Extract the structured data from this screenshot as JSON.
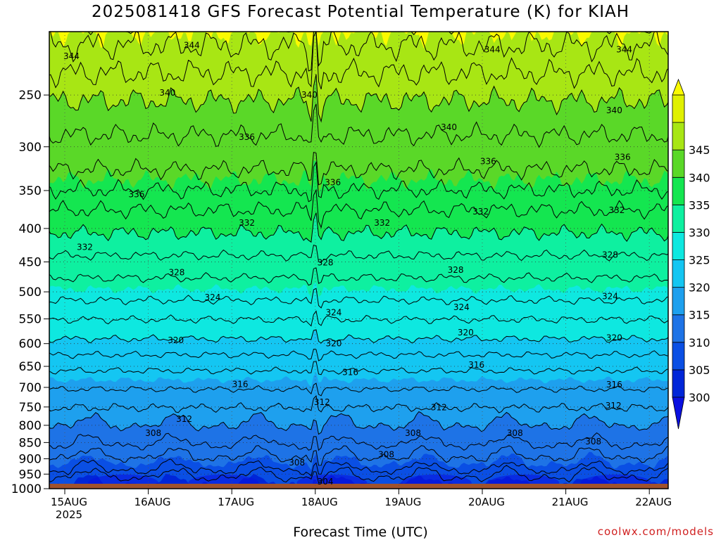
{
  "title": "2025081418 GFS Forecast Potential Temperature (K) for KIAH",
  "xlabel": "Forecast Time (UTC)",
  "credit": "coolwx.com/models",
  "chart_data": {
    "type": "contour",
    "variable": "Potential Temperature (K)",
    "y_axis": {
      "ticks": [
        250,
        300,
        350,
        400,
        450,
        500,
        550,
        600,
        650,
        700,
        750,
        800,
        850,
        900,
        950,
        1000
      ],
      "labels": [
        "250",
        "300",
        "350",
        "400",
        "450",
        "500",
        "550",
        "600",
        "650",
        "700",
        "750",
        "800",
        "850",
        "900",
        "950",
        "1000"
      ],
      "range": [
        200,
        1000
      ],
      "scale": "log",
      "inverted": true
    },
    "x_axis": {
      "labels": [
        "15AUG",
        "16AUG",
        "17AUG",
        "18AUG",
        "19AUG",
        "20AUG",
        "21AUG",
        "22AUG"
      ],
      "sublabel": "2025",
      "range_days": [
        0,
        7.4
      ]
    },
    "colorbar": {
      "levels": [
        300,
        305,
        310,
        315,
        320,
        325,
        330,
        335,
        340,
        345
      ],
      "labels": [
        "300",
        "305",
        "310",
        "315",
        "320",
        "325",
        "330",
        "335",
        "340",
        "345"
      ],
      "colors": [
        "#0026d8",
        "#0a4fe4",
        "#1e73e6",
        "#1ea0ee",
        "#14c6f2",
        "#0ee8e0",
        "#0ef0a0",
        "#14e650",
        "#5ad828",
        "#a8e614",
        "#e0f000"
      ],
      "under_color": "#0a10e0",
      "over_color": "#fafa00"
    },
    "isentropes": [
      {
        "theta": 304,
        "p": 940
      },
      {
        "theta": 308,
        "p": 860
      },
      {
        "theta": 312,
        "p": 752
      },
      {
        "theta": 316,
        "p": 660
      },
      {
        "theta": 320,
        "p": 590
      },
      {
        "theta": 324,
        "p": 515
      },
      {
        "theta": 328,
        "p": 440
      },
      {
        "theta": 332,
        "p": 375
      },
      {
        "theta": 336,
        "p": 325
      },
      {
        "theta": 340,
        "p": 255
      },
      {
        "theta": 344,
        "p": 210
      }
    ],
    "contour_labels": [
      {
        "text": "344",
        "t": 1.52,
        "p": 210
      },
      {
        "text": "344",
        "t": 0.08,
        "p": 218
      },
      {
        "text": "344",
        "t": 5.12,
        "p": 213
      },
      {
        "text": "344",
        "t": 6.7,
        "p": 213
      },
      {
        "text": "340",
        "t": 1.23,
        "p": 248
      },
      {
        "text": "340",
        "t": 2.93,
        "p": 250
      },
      {
        "text": "340",
        "t": 4.6,
        "p": 280
      },
      {
        "text": "340",
        "t": 6.58,
        "p": 264
      },
      {
        "text": "336",
        "t": 2.18,
        "p": 290
      },
      {
        "text": "336",
        "t": 0.86,
        "p": 355
      },
      {
        "text": "336",
        "t": 3.21,
        "p": 340
      },
      {
        "text": "336",
        "t": 5.07,
        "p": 316
      },
      {
        "text": "336",
        "t": 6.68,
        "p": 311
      },
      {
        "text": "332",
        "t": 2.18,
        "p": 392
      },
      {
        "text": "332",
        "t": 0.24,
        "p": 427
      },
      {
        "text": "332",
        "t": 3.8,
        "p": 392
      },
      {
        "text": "332",
        "t": 4.98,
        "p": 377
      },
      {
        "text": "332",
        "t": 6.61,
        "p": 375
      },
      {
        "text": "328",
        "t": 1.34,
        "p": 467
      },
      {
        "text": "328",
        "t": 3.12,
        "p": 451
      },
      {
        "text": "328",
        "t": 4.68,
        "p": 463
      },
      {
        "text": "328",
        "t": 6.53,
        "p": 439
      },
      {
        "text": "324",
        "t": 1.77,
        "p": 510
      },
      {
        "text": "324",
        "t": 3.22,
        "p": 538
      },
      {
        "text": "324",
        "t": 4.75,
        "p": 528
      },
      {
        "text": "324",
        "t": 6.53,
        "p": 508
      },
      {
        "text": "320",
        "t": 1.33,
        "p": 593
      },
      {
        "text": "320",
        "t": 3.22,
        "p": 600
      },
      {
        "text": "320",
        "t": 4.8,
        "p": 577
      },
      {
        "text": "320",
        "t": 6.58,
        "p": 588
      },
      {
        "text": "316",
        "t": 2.1,
        "p": 692
      },
      {
        "text": "316",
        "t": 3.42,
        "p": 664
      },
      {
        "text": "316",
        "t": 4.93,
        "p": 647
      },
      {
        "text": "316",
        "t": 6.58,
        "p": 693
      },
      {
        "text": "312",
        "t": 1.43,
        "p": 783
      },
      {
        "text": "312",
        "t": 3.08,
        "p": 737
      },
      {
        "text": "312",
        "t": 4.48,
        "p": 751
      },
      {
        "text": "312",
        "t": 6.57,
        "p": 747
      },
      {
        "text": "308",
        "t": 1.06,
        "p": 822
      },
      {
        "text": "308",
        "t": 2.78,
        "p": 912
      },
      {
        "text": "308",
        "t": 3.85,
        "p": 887
      },
      {
        "text": "308",
        "t": 4.17,
        "p": 822
      },
      {
        "text": "308",
        "t": 5.39,
        "p": 822
      },
      {
        "text": "308",
        "t": 6.33,
        "p": 847
      },
      {
        "text": "304",
        "t": 3.12,
        "p": 976
      }
    ],
    "grid": true,
    "ground_color": "#a0522d"
  }
}
